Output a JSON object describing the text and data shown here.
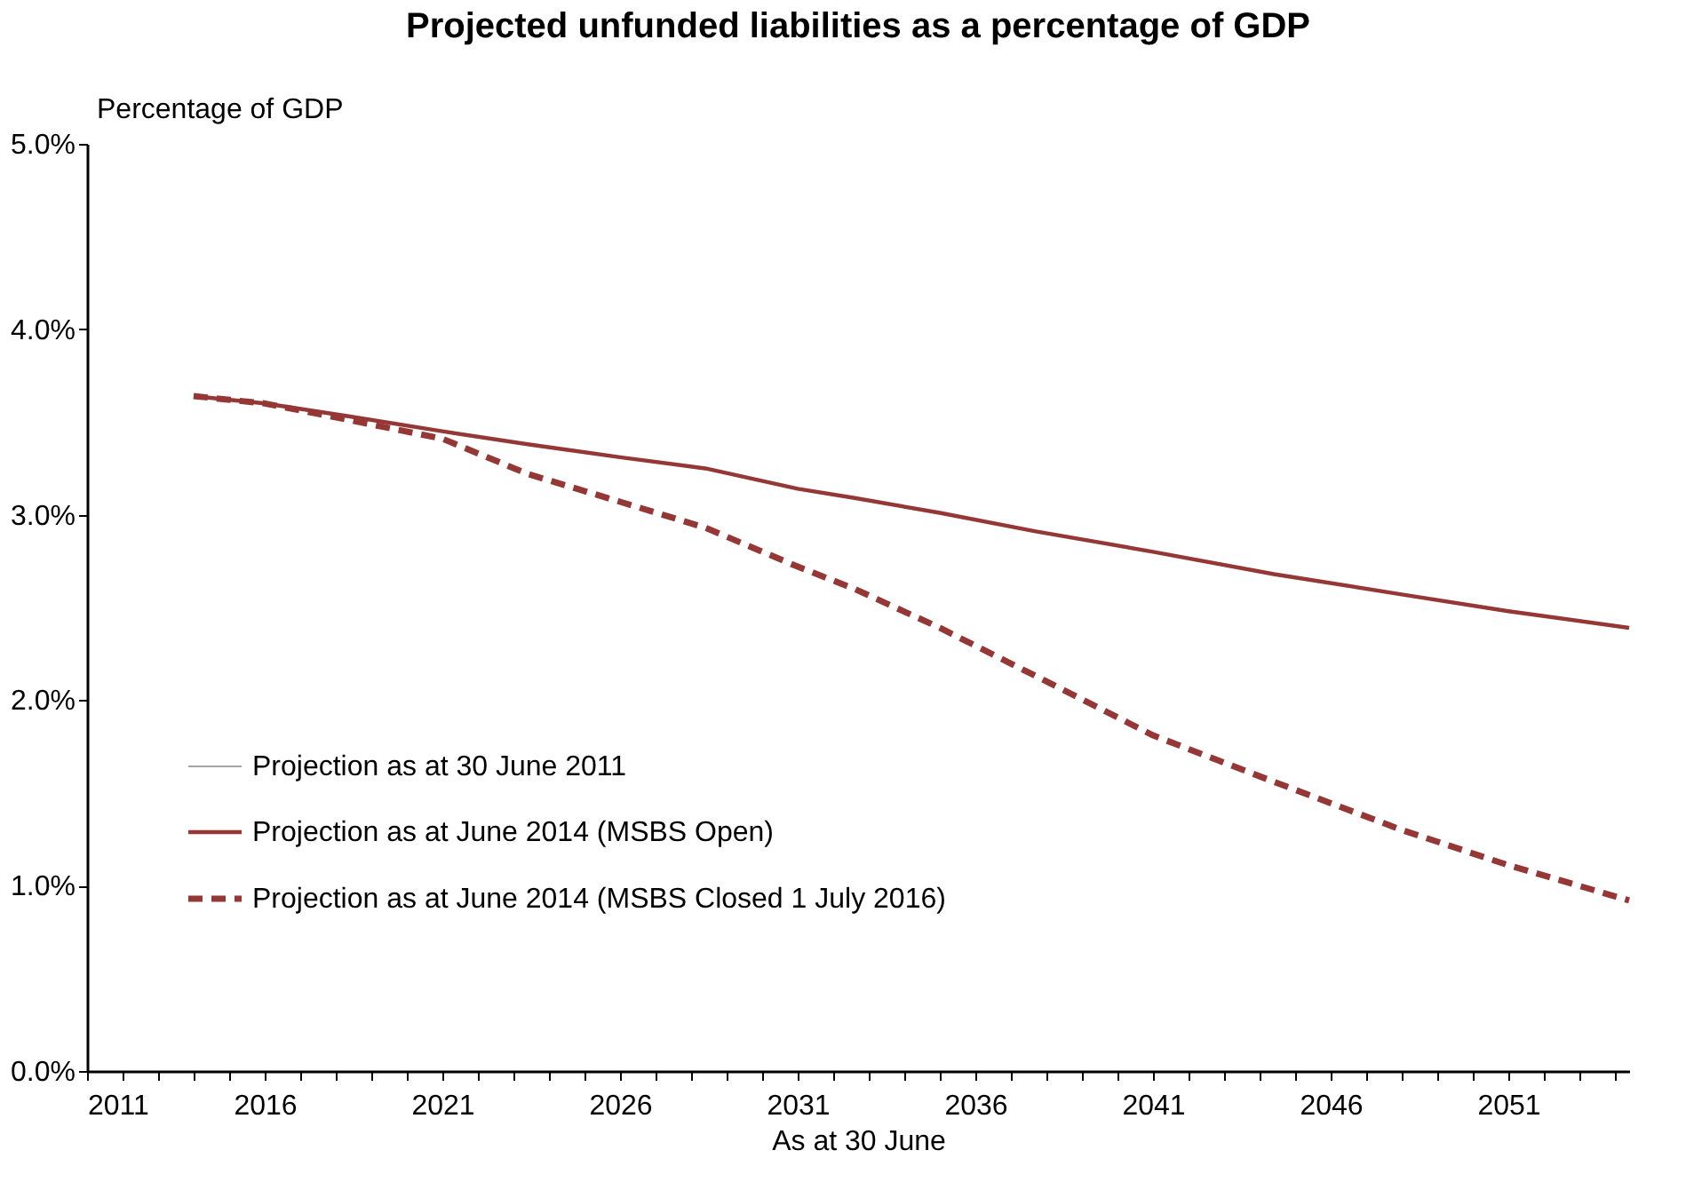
{
  "chart_data": {
    "type": "line",
    "title": "Projected unfunded liabilities as a percentage of GDP",
    "ylabel": "Percentage of GDP",
    "xlabel": "As at 30 June",
    "x": [
      2014,
      2016,
      2018.4,
      2021,
      2023.4,
      2026,
      2028.4,
      2031,
      2032.6,
      2035,
      2037.7,
      2041,
      2044.4,
      2048,
      2051,
      2054.4
    ],
    "series": [
      {
        "name": "Projection as at 30 June 2011",
        "color": "#a6a6a6",
        "line_style": "solid",
        "values": [
          null,
          null,
          null,
          null,
          null,
          null,
          null,
          null,
          null,
          null,
          null,
          null,
          null,
          null,
          null,
          null
        ]
      },
      {
        "name": "Projection as at June 2014 (MSBS Open)",
        "color": "#953735",
        "line_style": "solid",
        "values": [
          3.64,
          3.6,
          3.53,
          3.45,
          3.38,
          3.31,
          3.25,
          3.14,
          3.09,
          3.01,
          2.91,
          2.8,
          2.68,
          2.57,
          2.48,
          2.39
        ]
      },
      {
        "name": "Projection as at June 2014 (MSBS Closed 1 July 2016)",
        "color": "#953735",
        "line_style": "dashed",
        "values": [
          3.64,
          3.6,
          3.51,
          3.41,
          3.22,
          3.07,
          2.93,
          2.72,
          2.6,
          2.39,
          2.13,
          1.81,
          1.56,
          1.3,
          1.11,
          0.92
        ]
      }
    ],
    "xlim": [
      2011,
      2054.4
    ],
    "xticks": [
      2011,
      {
        "value": 2012,
        "label": null
      },
      {
        "value": 2013,
        "label": null
      },
      {
        "value": 2014,
        "label": null
      },
      {
        "value": 2015,
        "label": null
      },
      2016,
      {
        "value": 2017,
        "label": null
      },
      {
        "value": 2018,
        "label": null
      },
      {
        "value": 2019,
        "label": null
      },
      {
        "value": 2020,
        "label": null
      },
      2021,
      {
        "value": 2022,
        "label": null
      },
      {
        "value": 2023,
        "label": null
      },
      {
        "value": 2024,
        "label": null
      },
      {
        "value": 2025,
        "label": null
      },
      2026,
      {
        "value": 2027,
        "label": null
      },
      {
        "value": 2028,
        "label": null
      },
      {
        "value": 2029,
        "label": null
      },
      {
        "value": 2030,
        "label": null
      },
      2031,
      {
        "value": 2032,
        "label": null
      },
      {
        "value": 2033,
        "label": null
      },
      {
        "value": 2034,
        "label": null
      },
      {
        "value": 2035,
        "label": null
      },
      2036,
      {
        "value": 2037,
        "label": null
      },
      {
        "value": 2038,
        "label": null
      },
      {
        "value": 2039,
        "label": null
      },
      {
        "value": 2040,
        "label": null
      },
      2041,
      {
        "value": 2042,
        "label": null
      },
      {
        "value": 2043,
        "label": null
      },
      {
        "value": 2044,
        "label": null
      },
      {
        "value": 2045,
        "label": null
      },
      2046,
      {
        "value": 2047,
        "label": null
      },
      {
        "value": 2048,
        "label": null
      },
      {
        "value": 2049,
        "label": null
      },
      {
        "value": 2050,
        "label": null
      },
      2051,
      {
        "value": 2052,
        "label": null
      },
      {
        "value": 2053,
        "label": null
      },
      {
        "value": 2054,
        "label": null
      }
    ],
    "ylim": [
      0,
      5
    ],
    "yticks": [
      {
        "value": 0,
        "label": "0.0%"
      },
      {
        "value": 1,
        "label": "1.0%"
      },
      {
        "value": 2,
        "label": "2.0%"
      },
      {
        "value": 3,
        "label": "3.0%"
      },
      {
        "value": 4,
        "label": "4.0%"
      },
      {
        "value": 5,
        "label": "5.0%"
      }
    ],
    "grid": false,
    "legend": "bottom left",
    "marker": "none"
  }
}
